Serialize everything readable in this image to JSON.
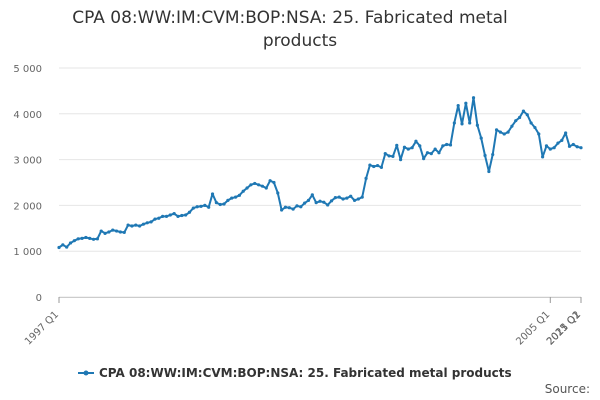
{
  "chart_data": {
    "type": "line",
    "title_lines": [
      "CPA 08:WW:IM:CVM:BOP:NSA: 25. Fabricated metal",
      "products"
    ],
    "series": [
      {
        "name": "CPA 08:WW:IM:CVM:BOP:NSA: 25. Fabricated metal products",
        "color": "#1f78b4",
        "values": [
          1080,
          1140,
          1090,
          1180,
          1230,
          1270,
          1280,
          1300,
          1280,
          1260,
          1270,
          1440,
          1390,
          1420,
          1460,
          1440,
          1420,
          1410,
          1570,
          1550,
          1570,
          1550,
          1590,
          1620,
          1640,
          1700,
          1720,
          1760,
          1760,
          1790,
          1820,
          1760,
          1780,
          1790,
          1850,
          1940,
          1970,
          1980,
          2000,
          1960,
          2250,
          2060,
          2020,
          2030,
          2110,
          2160,
          2180,
          2220,
          2310,
          2380,
          2450,
          2480,
          2450,
          2420,
          2380,
          2540,
          2500,
          2270,
          1900,
          1960,
          1950,
          1920,
          1990,
          1970,
          2050,
          2110,
          2230,
          2060,
          2090,
          2070,
          2010,
          2100,
          2170,
          2180,
          2140,
          2160,
          2200,
          2110,
          2140,
          2180,
          2590,
          2880,
          2850,
          2870,
          2830,
          3130,
          3080,
          3070,
          3310,
          3000,
          3270,
          3230,
          3260,
          3400,
          3300,
          3020,
          3150,
          3130,
          3230,
          3150,
          3300,
          3330,
          3320,
          3800,
          4180,
          3780,
          4230,
          3800,
          4350,
          3750,
          3470,
          3090,
          2740,
          3110,
          3650,
          3600,
          3560,
          3600,
          3730,
          3850,
          3920,
          4060,
          3980,
          3800,
          3700,
          3560,
          3060,
          3300,
          3230,
          3260,
          3360,
          3420,
          3580,
          3290,
          3330,
          3280,
          3260
        ]
      }
    ],
    "x_start": "1997 Q1",
    "x_tick_labels": [
      {
        "index": 0,
        "label": "1997 Q1"
      },
      {
        "index": 32,
        "label": "2005 Q1"
      },
      {
        "index": 64,
        "label": "2013 Q1"
      },
      {
        "index": 96,
        "label": "2021 Q1"
      },
      {
        "index": 113,
        "label": "2025 Q2"
      }
    ],
    "y_ticks": [
      0,
      1000,
      2000,
      3000,
      4000,
      5000
    ],
    "y_tick_labels": [
      "0",
      "1 000",
      "2 000",
      "3 000",
      "4 000",
      "5 000"
    ],
    "ylim": [
      0,
      5000
    ],
    "grid": true,
    "legend_position": "bottom-center",
    "source_label": "Source:"
  }
}
